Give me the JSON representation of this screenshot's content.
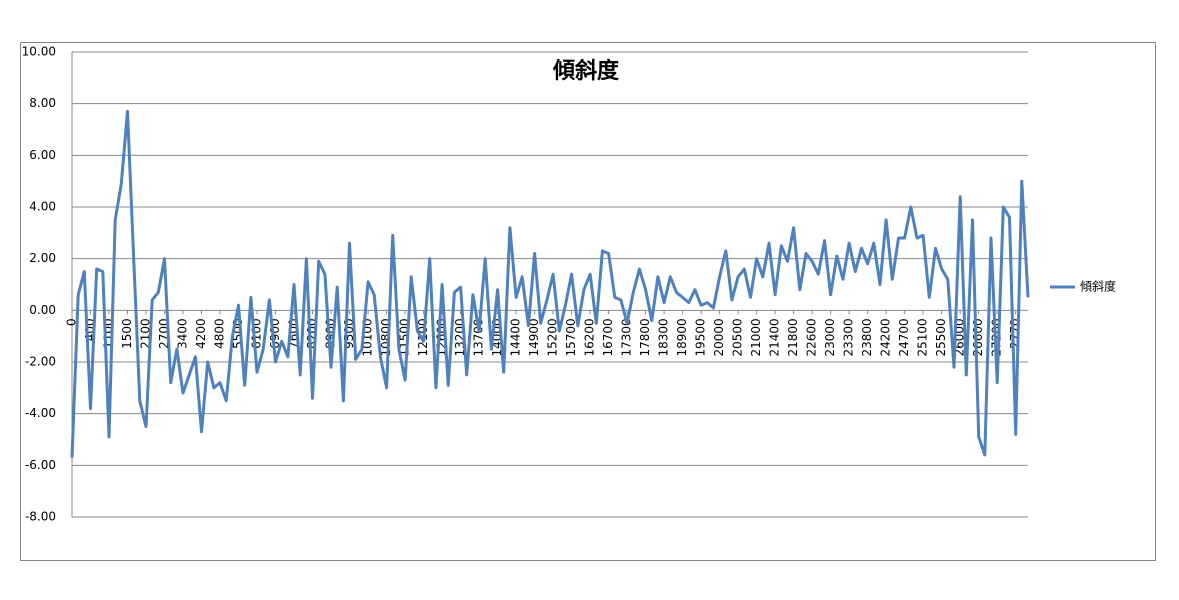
{
  "chart_data": {
    "type": "line",
    "title": "傾斜度",
    "categories": [
      "0",
      null,
      null,
      "400",
      null,
      null,
      "1100",
      null,
      null,
      "1500",
      null,
      null,
      "2100",
      null,
      null,
      "2700",
      null,
      null,
      "3400",
      null,
      null,
      "4200",
      null,
      null,
      "4800",
      null,
      null,
      "5500",
      null,
      null,
      "6100",
      null,
      null,
      "6900",
      null,
      null,
      "7600",
      null,
      null,
      "8200",
      null,
      null,
      "8900",
      null,
      null,
      "9500",
      null,
      null,
      "10100",
      null,
      null,
      "10800",
      null,
      null,
      "11500",
      null,
      null,
      "12100",
      null,
      null,
      "12600",
      null,
      null,
      "13200",
      null,
      null,
      "13700",
      null,
      null,
      "14000",
      null,
      null,
      "14400",
      null,
      null,
      "14900",
      null,
      null,
      "15200",
      null,
      null,
      "15700",
      null,
      null,
      "16200",
      null,
      null,
      "16700",
      null,
      null,
      "17300",
      null,
      null,
      "17800",
      null,
      null,
      "18300",
      null,
      null,
      "18900",
      null,
      null,
      "19500",
      null,
      null,
      "20000",
      null,
      null,
      "20500",
      null,
      null,
      "21000",
      null,
      null,
      "21400",
      null,
      null,
      "21800",
      null,
      null,
      "22600",
      null,
      null,
      "23000",
      null,
      null,
      "23300",
      null,
      null,
      "23800",
      null,
      null,
      "24200",
      null,
      null,
      "24700",
      null,
      null,
      "25100",
      null,
      null,
      "25500",
      null,
      null,
      "26000",
      null,
      null,
      "26600",
      null,
      null,
      "27200",
      null,
      null,
      "2770",
      null,
      null
    ],
    "series": [
      {
        "name": "傾斜度",
        "color": "#4f81bd",
        "values": [
          -5.7,
          0.6,
          1.5,
          -3.8,
          1.6,
          1.5,
          -4.9,
          3.5,
          4.9,
          7.7,
          2.0,
          -3.5,
          -4.5,
          0.4,
          0.7,
          2.0,
          -2.8,
          -1.5,
          -3.2,
          -2.5,
          -1.8,
          -4.7,
          -2.0,
          -3.0,
          -2.8,
          -3.5,
          -1.0,
          0.2,
          -2.9,
          0.5,
          -2.4,
          -1.5,
          0.4,
          -2.0,
          -1.2,
          -1.8,
          1.0,
          -2.5,
          2.0,
          -3.4,
          1.9,
          1.4,
          -2.2,
          0.9,
          -3.5,
          2.6,
          -1.9,
          -1.5,
          1.1,
          0.6,
          -1.8,
          -3.0,
          2.9,
          -1.5,
          -2.7,
          1.3,
          -0.8,
          -1.2,
          2.0,
          -3.0,
          1.0,
          -2.9,
          0.7,
          0.9,
          -2.5,
          0.6,
          -0.8,
          2.0,
          -1.5,
          0.8,
          -2.4,
          3.2,
          0.5,
          1.3,
          -0.6,
          2.2,
          -0.5,
          0.4,
          1.4,
          -0.8,
          0.2,
          1.4,
          -0.6,
          0.8,
          1.4,
          -0.5,
          2.3,
          2.2,
          0.5,
          0.4,
          -0.5,
          0.7,
          1.6,
          0.8,
          -0.4,
          1.3,
          0.3,
          1.3,
          0.7,
          0.5,
          0.3,
          0.8,
          0.2,
          0.3,
          0.1,
          1.3,
          2.3,
          0.4,
          1.3,
          1.6,
          0.5,
          2.0,
          1.3,
          2.6,
          0.6,
          2.5,
          1.9,
          3.2,
          0.8,
          2.2,
          1.9,
          1.4,
          2.7,
          0.6,
          2.1,
          1.2,
          2.6,
          1.5,
          2.4,
          1.8,
          2.6,
          1.0,
          3.5,
          1.2,
          2.8,
          2.8,
          4.0,
          2.8,
          2.9,
          0.5,
          2.4,
          1.6,
          1.2,
          -2.2,
          4.4,
          -2.5,
          3.5,
          -4.9,
          -5.6,
          2.8,
          -2.8,
          4.0,
          3.6,
          -4.8,
          5.0,
          0.5
        ]
      }
    ],
    "ylim": [
      -8,
      10
    ],
    "yticks": [
      {
        "value": -8,
        "label": "-8.00"
      },
      {
        "value": -6,
        "label": "-6.00"
      },
      {
        "value": -4,
        "label": "-4.00"
      },
      {
        "value": -2,
        "label": "-2.00"
      },
      {
        "value": 0,
        "label": "0.00"
      },
      {
        "value": 2,
        "label": "2.00"
      },
      {
        "value": 4,
        "label": "4.00"
      },
      {
        "value": 6,
        "label": "6.00"
      },
      {
        "value": 8,
        "label": "8.00"
      },
      {
        "value": 10,
        "label": "10.00"
      }
    ],
    "grid": true,
    "legend": "right"
  }
}
